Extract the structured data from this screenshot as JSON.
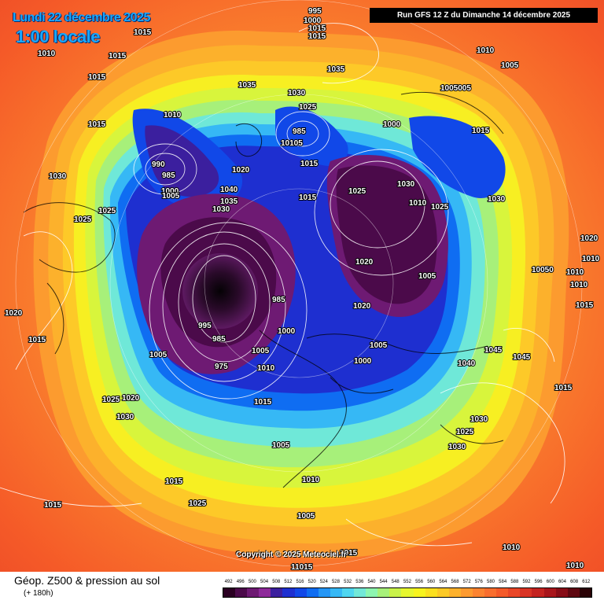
{
  "header": {
    "date_text": "Lundi 22 décembre 2025",
    "hour_text": "1:00 locale",
    "run_text": "Run GFS 12 Z du Dimanche 14 décembre 2025"
  },
  "copyright": "Copyright © 2025 Meteociel.fr",
  "footer": {
    "param_title": "Géop. Z500 & pression au sol",
    "forecast_hour": "(+ 180h)"
  },
  "scale": {
    "labels": [
      "492",
      "496",
      "500",
      "504",
      "508",
      "512",
      "516",
      "520",
      "524",
      "528",
      "532",
      "536",
      "540",
      "544",
      "548",
      "552",
      "556",
      "560",
      "564",
      "568",
      "572",
      "576",
      "580",
      "584",
      "588",
      "592",
      "596",
      "600",
      "604",
      "608",
      "612"
    ],
    "colors": [
      "#2a0022",
      "#4b0a4a",
      "#6e1a73",
      "#8e2a9a",
      "#3b1f9e",
      "#1e2fd0",
      "#1148e8",
      "#0f6df2",
      "#2596f5",
      "#36b8f5",
      "#4fd6f0",
      "#72e8d8",
      "#8df5b0",
      "#a7f07a",
      "#c9f24a",
      "#e6f72f",
      "#f7f41e",
      "#fbe01f",
      "#fcc926",
      "#fdb12c",
      "#fd9a2f",
      "#fc8330",
      "#f96e2e",
      "#f45a29",
      "#e94627",
      "#d93324",
      "#c42320",
      "#a8151b",
      "#870c16",
      "#5e0710",
      "#2a0306"
    ]
  },
  "isobar_labels": [
    {
      "text": "995"
    },
    {
      "text": "1000"
    },
    {
      "text": "1015"
    },
    {
      "text": "1015"
    },
    {
      "text": "1010"
    },
    {
      "text": "1015"
    },
    {
      "text": "1035"
    },
    {
      "text": "1010"
    },
    {
      "text": "1015"
    },
    {
      "text": "1005"
    },
    {
      "text": "1005005"
    },
    {
      "text": "1015"
    },
    {
      "text": "1035"
    },
    {
      "text": "1030"
    },
    {
      "text": "1025"
    },
    {
      "text": "1000"
    },
    {
      "text": "1015"
    },
    {
      "text": "1010"
    },
    {
      "text": "990"
    },
    {
      "text": "985"
    },
    {
      "text": "1000"
    },
    {
      "text": "1005"
    },
    {
      "text": "1020"
    },
    {
      "text": "1040"
    },
    {
      "text": "1035"
    },
    {
      "text": "1030"
    },
    {
      "text": "985"
    },
    {
      "text": "10105"
    },
    {
      "text": "1015"
    },
    {
      "text": "1025"
    },
    {
      "text": "1030"
    },
    {
      "text": "1015"
    },
    {
      "text": "1010"
    },
    {
      "text": "1025"
    },
    {
      "text": "1025"
    },
    {
      "text": "1025"
    },
    {
      "text": "1030"
    },
    {
      "text": "1030"
    },
    {
      "text": "1015"
    },
    {
      "text": "1020"
    },
    {
      "text": "1010"
    },
    {
      "text": "1005"
    },
    {
      "text": "10050"
    },
    {
      "text": "1010"
    },
    {
      "text": "1010"
    },
    {
      "text": "1015"
    },
    {
      "text": "1020"
    },
    {
      "text": "985"
    },
    {
      "text": "995"
    },
    {
      "text": "1000"
    },
    {
      "text": "1020"
    },
    {
      "text": "1005"
    },
    {
      "text": "1000"
    },
    {
      "text": "1045"
    },
    {
      "text": "1040"
    },
    {
      "text": "1045"
    },
    {
      "text": "1015"
    },
    {
      "text": "1015"
    },
    {
      "text": "1005"
    },
    {
      "text": "985"
    },
    {
      "text": "975"
    },
    {
      "text": "1005"
    },
    {
      "text": "1010"
    },
    {
      "text": "1015"
    },
    {
      "text": "1025"
    },
    {
      "text": "1020"
    },
    {
      "text": "1030"
    },
    {
      "text": "1030"
    },
    {
      "text": "1025"
    },
    {
      "text": "1030"
    },
    {
      "text": "1020"
    },
    {
      "text": "1025"
    },
    {
      "text": "1005"
    },
    {
      "text": "1010"
    },
    {
      "text": "1005"
    },
    {
      "text": "1015"
    },
    {
      "text": "1025"
    },
    {
      "text": "1015"
    },
    {
      "text": "1015"
    },
    {
      "text": "1010"
    },
    {
      "text": "1010"
    },
    {
      "text": "11015"
    }
  ]
}
